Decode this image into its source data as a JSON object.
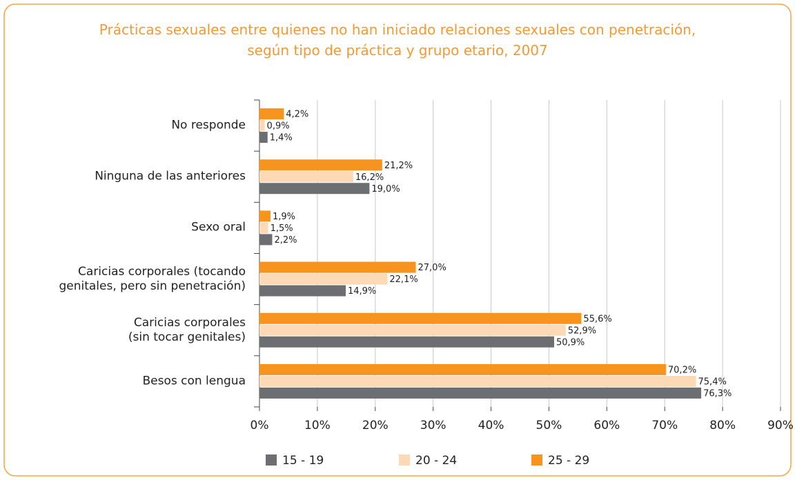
{
  "chart_data": {
    "type": "bar",
    "orientation": "horizontal",
    "title": "Prácticas sexuales entre quienes no han iniciado relaciones sexuales con penetración,\nsegún tipo de práctica y grupo etario, 2007",
    "categories": [
      "No responde",
      "Ninguna de las anteriores",
      "Sexo oral",
      "Caricias corporales (tocando\ngenitales, pero sin penetración)",
      "Caricias corporales\n(sin tocar genitales)",
      "Besos con lengua"
    ],
    "series": [
      {
        "name": "15 - 19",
        "color": "#6d6e71",
        "values": [
          1.4,
          19.0,
          2.2,
          14.9,
          50.9,
          76.3
        ],
        "value_labels": [
          "1,4%",
          "19,0%",
          "2,2%",
          "14,9%",
          "50,9%",
          "76,3%"
        ]
      },
      {
        "name": "20 - 24",
        "color": "#fdd9b5",
        "values": [
          0.9,
          16.2,
          1.5,
          22.1,
          52.9,
          75.4
        ],
        "value_labels": [
          "0,9%",
          "16,2%",
          "1,5%",
          "22,1%",
          "52,9%",
          "75,4%"
        ]
      },
      {
        "name": "25 - 29",
        "color": "#f7941d",
        "values": [
          4.2,
          21.2,
          1.9,
          27.0,
          55.6,
          70.2
        ],
        "value_labels": [
          "4,2%",
          "21,2%",
          "1,9%",
          "27,0%",
          "55,6%",
          "70,2%"
        ]
      }
    ],
    "xlim": [
      0,
      90
    ],
    "xticks": [
      {
        "value": 0,
        "label": "0%"
      },
      {
        "value": 10,
        "label": "10%"
      },
      {
        "value": 20,
        "label": "20%"
      },
      {
        "value": 30,
        "label": "30%"
      },
      {
        "value": 40,
        "label": "40%"
      },
      {
        "value": 50,
        "label": "50%"
      },
      {
        "value": 60,
        "label": "60%"
      },
      {
        "value": 70,
        "label": "70%"
      },
      {
        "value": 80,
        "label": "80%"
      },
      {
        "value": 90,
        "label": "90%"
      }
    ],
    "grid": true,
    "legend": "bottom"
  }
}
